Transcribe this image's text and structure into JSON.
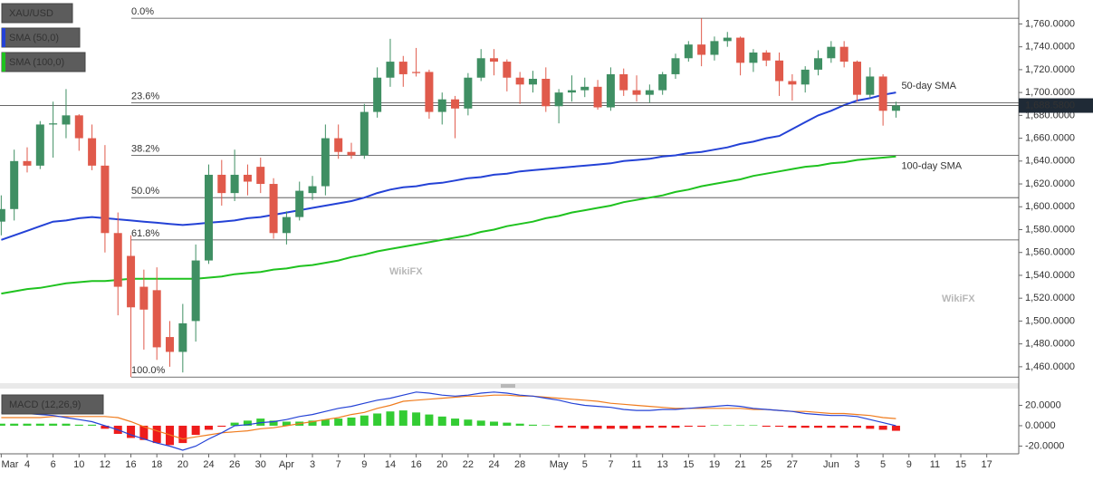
{
  "watermark": "WikiFX",
  "chart_data": [
    {
      "type": "candlestick",
      "title": "XAU/USD",
      "categories": [
        "Mar",
        null,
        "4",
        null,
        "6",
        null,
        "10",
        null,
        "12",
        null,
        "16",
        null,
        "18",
        null,
        "20",
        null,
        "24",
        null,
        "26",
        null,
        "30",
        null,
        "Apr",
        null,
        "3",
        null,
        "7",
        null,
        "9",
        null,
        "14",
        null,
        "16",
        null,
        "20",
        null,
        "22",
        null,
        "24",
        null,
        "28",
        null,
        null,
        "May",
        null,
        "5",
        null,
        "7",
        null,
        "11",
        null,
        "13",
        null,
        "15",
        null,
        "19",
        null,
        "21",
        null,
        "25",
        null,
        "27",
        null,
        null,
        "Jun",
        null,
        "3",
        null,
        "5",
        null,
        "9",
        null,
        "11",
        null,
        "15",
        null,
        "17"
      ],
      "open": [
        1587,
        1598,
        1640,
        1636,
        1672,
        1672,
        1680,
        1660,
        1636,
        1577,
        1557,
        1530,
        1527,
        1486,
        1473,
        1500,
        1553,
        1628,
        1612,
        1628,
        1635,
        1620,
        1577,
        1591,
        1612,
        1618,
        1660,
        1648,
        1645,
        1683,
        1713,
        1727,
        1718,
        1718,
        1683,
        1694,
        1686,
        1713,
        1730,
        1727,
        1713,
        1707,
        1712,
        1688,
        1700,
        1702,
        1705,
        1687,
        1716,
        1702,
        1698,
        1702,
        1716,
        1730,
        1742,
        1733,
        1745,
        1748,
        1726,
        1735,
        1728,
        1710,
        1707,
        1720,
        1730,
        1740,
        1727,
        1698,
        1714,
        1684,
        null,
        null,
        null,
        null,
        null,
        null,
        null
      ],
      "high": [
        1610,
        1650,
        1652,
        1675,
        1692,
        1703,
        1681,
        1672,
        1654,
        1595,
        1575,
        1545,
        1547,
        1500,
        1515,
        1567,
        1637,
        1641,
        1650,
        1637,
        1643,
        1625,
        1596,
        1622,
        1627,
        1672,
        1672,
        1656,
        1690,
        1722,
        1747,
        1732,
        1739,
        1720,
        1700,
        1697,
        1717,
        1738,
        1738,
        1729,
        1718,
        1719,
        1722,
        1703,
        1715,
        1713,
        1711,
        1722,
        1721,
        1715,
        1707,
        1718,
        1734,
        1745,
        1765,
        1749,
        1753,
        1749,
        1738,
        1737,
        1735,
        1716,
        1723,
        1737,
        1745,
        1745,
        1728,
        1722,
        1716,
        1692,
        null,
        null,
        null,
        null,
        null,
        null,
        null
      ],
      "low": [
        1575,
        1588,
        1630,
        1633,
        1643,
        1660,
        1649,
        1632,
        1560,
        1505,
        1451,
        1475,
        1466,
        1460,
        1455,
        1482,
        1550,
        1601,
        1605,
        1610,
        1612,
        1572,
        1567,
        1588,
        1606,
        1610,
        1642,
        1642,
        1642,
        1678,
        1705,
        1705,
        1714,
        1677,
        1672,
        1660,
        1680,
        1710,
        1715,
        1701,
        1690,
        1700,
        1683,
        1673,
        1692,
        1696,
        1685,
        1684,
        1697,
        1692,
        1691,
        1698,
        1712,
        1727,
        1723,
        1728,
        1740,
        1715,
        1718,
        1723,
        1697,
        1693,
        1700,
        1715,
        1726,
        1722,
        1692,
        1695,
        1671,
        1678,
        null,
        null,
        null,
        null,
        null,
        null,
        null
      ],
      "close": [
        1598,
        1640,
        1636,
        1672,
        1673,
        1680,
        1660,
        1636,
        1577,
        1530,
        1512,
        1510,
        1477,
        1473,
        1498,
        1553,
        1628,
        1612,
        1628,
        1622,
        1620,
        1577,
        1591,
        1614,
        1618,
        1660,
        1648,
        1645,
        1683,
        1713,
        1727,
        1716,
        1717,
        1683,
        1694,
        1686,
        1713,
        1730,
        1727,
        1713,
        1707,
        1712,
        1688,
        1700,
        1702,
        1705,
        1687,
        1716,
        1702,
        1698,
        1702,
        1716,
        1730,
        1742,
        1733,
        1745,
        1748,
        1726,
        1735,
        1728,
        1710,
        1707,
        1720,
        1730,
        1740,
        1727,
        1698,
        1714,
        1684,
        1688.58,
        null,
        null,
        null,
        null,
        null,
        null,
        null
      ],
      "up_color": "#3f8f63",
      "down_color": "#e05a4b",
      "overlays": [
        {
          "name": "SMA (50,0)",
          "annotation": "50-day SMA",
          "color": "#2442d6",
          "label_color": "#6b78d9",
          "values": [
            1571,
            1575,
            1579,
            1583,
            1587,
            1588,
            1590,
            1591,
            1590,
            1589,
            1588,
            1587,
            1586,
            1585,
            1584,
            1585,
            1586,
            1587,
            1588,
            1590,
            1591,
            1593,
            1595,
            1597,
            1599,
            1601,
            1603,
            1605,
            1608,
            1612,
            1615,
            1617,
            1618,
            1620,
            1621,
            1623,
            1625,
            1626,
            1628,
            1629,
            1631,
            1632,
            1633,
            1634,
            1635,
            1636,
            1637,
            1638,
            1640,
            1641,
            1642,
            1644,
            1645,
            1647,
            1648,
            1650,
            1652,
            1655,
            1657,
            1660,
            1662,
            1668,
            1674,
            1680,
            1684,
            1689,
            1693,
            1695,
            1698,
            1700,
            null,
            null,
            null,
            null,
            null,
            null,
            null
          ]
        },
        {
          "name": "SMA (100,0)",
          "annotation": "100-day SMA",
          "color": "#1fc21f",
          "label_color": "#1fb51f",
          "values": [
            1524,
            1526,
            1528,
            1529,
            1531,
            1533,
            1534,
            1535,
            1535,
            1536,
            1537,
            1537,
            1537,
            1537,
            1537,
            1537,
            1538,
            1539,
            1541,
            1542,
            1543,
            1545,
            1546,
            1548,
            1549,
            1551,
            1553,
            1556,
            1558,
            1561,
            1563,
            1565,
            1567,
            1569,
            1571,
            1573,
            1575,
            1578,
            1580,
            1583,
            1585,
            1587,
            1590,
            1592,
            1595,
            1597,
            1599,
            1601,
            1604,
            1606,
            1608,
            1610,
            1613,
            1615,
            1618,
            1620,
            1622,
            1624,
            1627,
            1629,
            1631,
            1633,
            1635,
            1636,
            1638,
            1639,
            1641,
            1642,
            1643,
            1644,
            null,
            null,
            null,
            null,
            null,
            null,
            null
          ]
        }
      ],
      "fib_levels": [
        {
          "value": 1765,
          "label": "0.0%"
        },
        {
          "value": 1691,
          "label": "23.6%"
        },
        {
          "value": 1645,
          "label": "38.2%"
        },
        {
          "value": 1608,
          "label": "50.0%"
        },
        {
          "value": 1571,
          "label": "61.8%"
        },
        {
          "value": 1451,
          "label": "100.0%"
        }
      ],
      "last_price": {
        "value": 1688.58,
        "label": "1,688.5800"
      },
      "ylim": [
        1448,
        1777
      ],
      "yticks": [
        {
          "value": 1460,
          "label": "1,460.0000"
        },
        {
          "value": 1480,
          "label": "1,480.0000"
        },
        {
          "value": 1500,
          "label": "1,500.0000"
        },
        {
          "value": 1520,
          "label": "1,520.0000"
        },
        {
          "value": 1540,
          "label": "1,540.0000"
        },
        {
          "value": 1560,
          "label": "1,560.0000"
        },
        {
          "value": 1580,
          "label": "1,580.0000"
        },
        {
          "value": 1600,
          "label": "1,600.0000"
        },
        {
          "value": 1620,
          "label": "1,620.0000"
        },
        {
          "value": 1640,
          "label": "1,640.0000"
        },
        {
          "value": 1660,
          "label": "1,660.0000"
        },
        {
          "value": 1680,
          "label": "1,680.0000"
        },
        {
          "value": 1700,
          "label": "1,700.0000"
        },
        {
          "value": 1720,
          "label": "1,720.0000"
        },
        {
          "value": 1740,
          "label": "1,740.0000"
        },
        {
          "value": 1760,
          "label": "1,760.0000"
        }
      ]
    },
    {
      "type": "macd",
      "title": "MACD (12,26,9)",
      "macd": {
        "color": "#2442d6",
        "values": [
          13,
          12,
          12,
          11,
          10,
          8,
          6,
          4,
          0,
          -4,
          -9,
          -13,
          -17,
          -20,
          -24,
          -20,
          -13,
          -7,
          0,
          1,
          3,
          4,
          6,
          9,
          11,
          14,
          17,
          19,
          22,
          25,
          27,
          30,
          33,
          32,
          30,
          29,
          30,
          32,
          33,
          32,
          30,
          29,
          27,
          25,
          22,
          20,
          19,
          18,
          16,
          15,
          15,
          16,
          16,
          17,
          18,
          19,
          20,
          19,
          17,
          16,
          15,
          14,
          12,
          11,
          10,
          10,
          9,
          6,
          3,
          0,
          null,
          null,
          null,
          null,
          null,
          null,
          null
        ]
      },
      "signal": {
        "color": "#f07c1e",
        "values": [
          8,
          8,
          8,
          8,
          9,
          9,
          9,
          9,
          9,
          8,
          4,
          -1,
          -5,
          -9,
          -13,
          -11,
          -9,
          -7,
          -6,
          -5,
          -3,
          -2,
          0,
          2,
          4,
          6,
          8,
          11,
          13,
          17,
          20,
          24,
          25,
          26,
          27,
          28,
          29,
          29,
          30,
          30,
          29,
          29,
          28,
          27,
          26,
          25,
          24,
          22,
          21,
          20,
          19,
          18,
          17,
          17,
          17,
          17,
          17,
          17,
          16,
          16,
          15,
          14,
          14,
          13,
          12,
          12,
          11,
          10,
          8,
          7,
          null,
          null,
          null,
          null,
          null,
          null,
          null
        ]
      },
      "histogram": {
        "up_color": "#33cc33",
        "down_color": "#ee1c1c",
        "values": [
          2,
          2,
          2,
          2,
          2,
          2,
          1,
          1,
          -3,
          -8,
          -12,
          -14,
          -17,
          -19,
          -17,
          -9,
          -4,
          -1,
          3,
          5,
          7,
          5,
          4,
          4,
          5,
          6,
          7,
          8,
          10,
          12,
          14,
          15,
          13,
          11,
          9,
          7,
          6,
          5,
          4,
          3,
          2,
          1,
          0.5,
          -2,
          -2,
          -3,
          -3,
          -3,
          -3,
          -3,
          -2,
          -2,
          -2,
          -1,
          -1,
          0.5,
          0.5,
          0.5,
          0.5,
          -1,
          -1,
          -2,
          -2,
          -2,
          -2,
          -2,
          -2,
          -3,
          -4,
          -5,
          null,
          null,
          null,
          null,
          null,
          null,
          null
        ]
      },
      "ylim": [
        -26.7,
        37.3
      ],
      "yticks": [
        {
          "value": 20,
          "label": "20.0000"
        },
        {
          "value": 0,
          "label": "0.0000"
        },
        {
          "value": -20,
          "label": "-20.0000"
        }
      ]
    }
  ]
}
